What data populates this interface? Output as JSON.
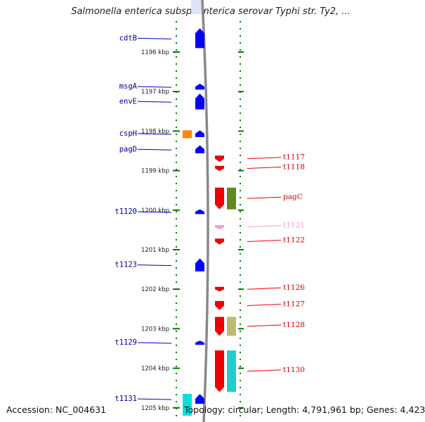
{
  "title": "Salmonella enterica subsp. enterica serovar Typhi str. Ty2, ...",
  "footer": {
    "accession": "Accession: NC_004631",
    "summary": "Topology: circular; Length: 4,791,961 bp; Genes: 4,423"
  },
  "colors": {
    "left_label": "#00008b",
    "right_label": "#cc0000",
    "pink_label": "#ff99cc",
    "ruler_green": "#007700",
    "backbone": "#888888"
  },
  "ruler": {
    "kbp_start": 1196,
    "kbp_end": 1205,
    "ticks": [
      {
        "kbp": 1196,
        "label": "1196 kbp"
      },
      {
        "kbp": 1197,
        "label": "1197 kbp"
      },
      {
        "kbp": 1198,
        "label": "1198 kbp"
      },
      {
        "kbp": 1199,
        "label": "1199 kbp"
      },
      {
        "kbp": 1200,
        "label": "1200 kbp"
      },
      {
        "kbp": 1201,
        "label": "1201 kbp"
      },
      {
        "kbp": 1202,
        "label": "1202 kbp"
      },
      {
        "kbp": 1203,
        "label": "1203 kbp"
      },
      {
        "kbp": 1204,
        "label": "1204 kbp"
      },
      {
        "kbp": 1205,
        "label": "1205 kbp"
      }
    ]
  },
  "left_genes": [
    {
      "name": "cdtB",
      "start": 1195.4,
      "end": 1195.9,
      "color": "#0000ff"
    },
    {
      "name": "msgA",
      "start": 1196.8,
      "end": 1196.95,
      "color": "#0000ff"
    },
    {
      "name": "envE",
      "start": 1197.05,
      "end": 1197.45,
      "color": "#0000ff"
    },
    {
      "name": "cspH",
      "start": 1197.98,
      "end": 1198.15,
      "color": "#0000ff"
    },
    {
      "name": "pagD",
      "start": 1198.36,
      "end": 1198.56,
      "color": "#0000ff"
    },
    {
      "name": "t1120",
      "start": 1199.98,
      "end": 1200.1,
      "color": "#0000ff"
    },
    {
      "name": "t1123",
      "start": 1201.22,
      "end": 1201.55,
      "color": "#0000ff"
    },
    {
      "name": "t1129",
      "start": 1203.3,
      "end": 1203.4,
      "color": "#0000ff"
    },
    {
      "name": "t1131",
      "start": 1204.65,
      "end": 1204.9,
      "color": "#0000ff"
    }
  ],
  "left_extra": [
    {
      "start": 1197.98,
      "end": 1198.18,
      "color": "#ff8800"
    },
    {
      "start": 1204.65,
      "end": 1205.2,
      "color": "#00e0e0"
    }
  ],
  "right_genes": [
    {
      "name": "t1117",
      "start": 1198.62,
      "end": 1198.78,
      "color": "#ee0000"
    },
    {
      "name": "t1118",
      "start": 1198.88,
      "end": 1199.01,
      "color": "#ee0000"
    },
    {
      "name": "pagC",
      "start": 1199.43,
      "end": 1199.98,
      "color": "#ee0000"
    },
    {
      "name": "t1121",
      "start": 1200.38,
      "end": 1200.47,
      "color": "#ff99cc"
    },
    {
      "name": "t1122",
      "start": 1200.72,
      "end": 1200.87,
      "color": "#ee0000"
    },
    {
      "name": "t1126",
      "start": 1201.94,
      "end": 1202.06,
      "color": "#ee0000"
    },
    {
      "name": "t1127",
      "start": 1202.3,
      "end": 1202.53,
      "color": "#ee0000"
    },
    {
      "name": "t1128",
      "start": 1202.7,
      "end": 1203.18,
      "color": "#ee0000"
    },
    {
      "name": "t1130",
      "start": 1203.55,
      "end": 1204.6,
      "color": "#ee0000"
    }
  ],
  "right_extra": [
    {
      "start": 1199.43,
      "end": 1199.98,
      "color": "#668822"
    },
    {
      "start": 1202.7,
      "end": 1203.18,
      "color": "#bbbb77"
    },
    {
      "start": 1203.55,
      "end": 1204.6,
      "color": "#22cccc"
    }
  ]
}
